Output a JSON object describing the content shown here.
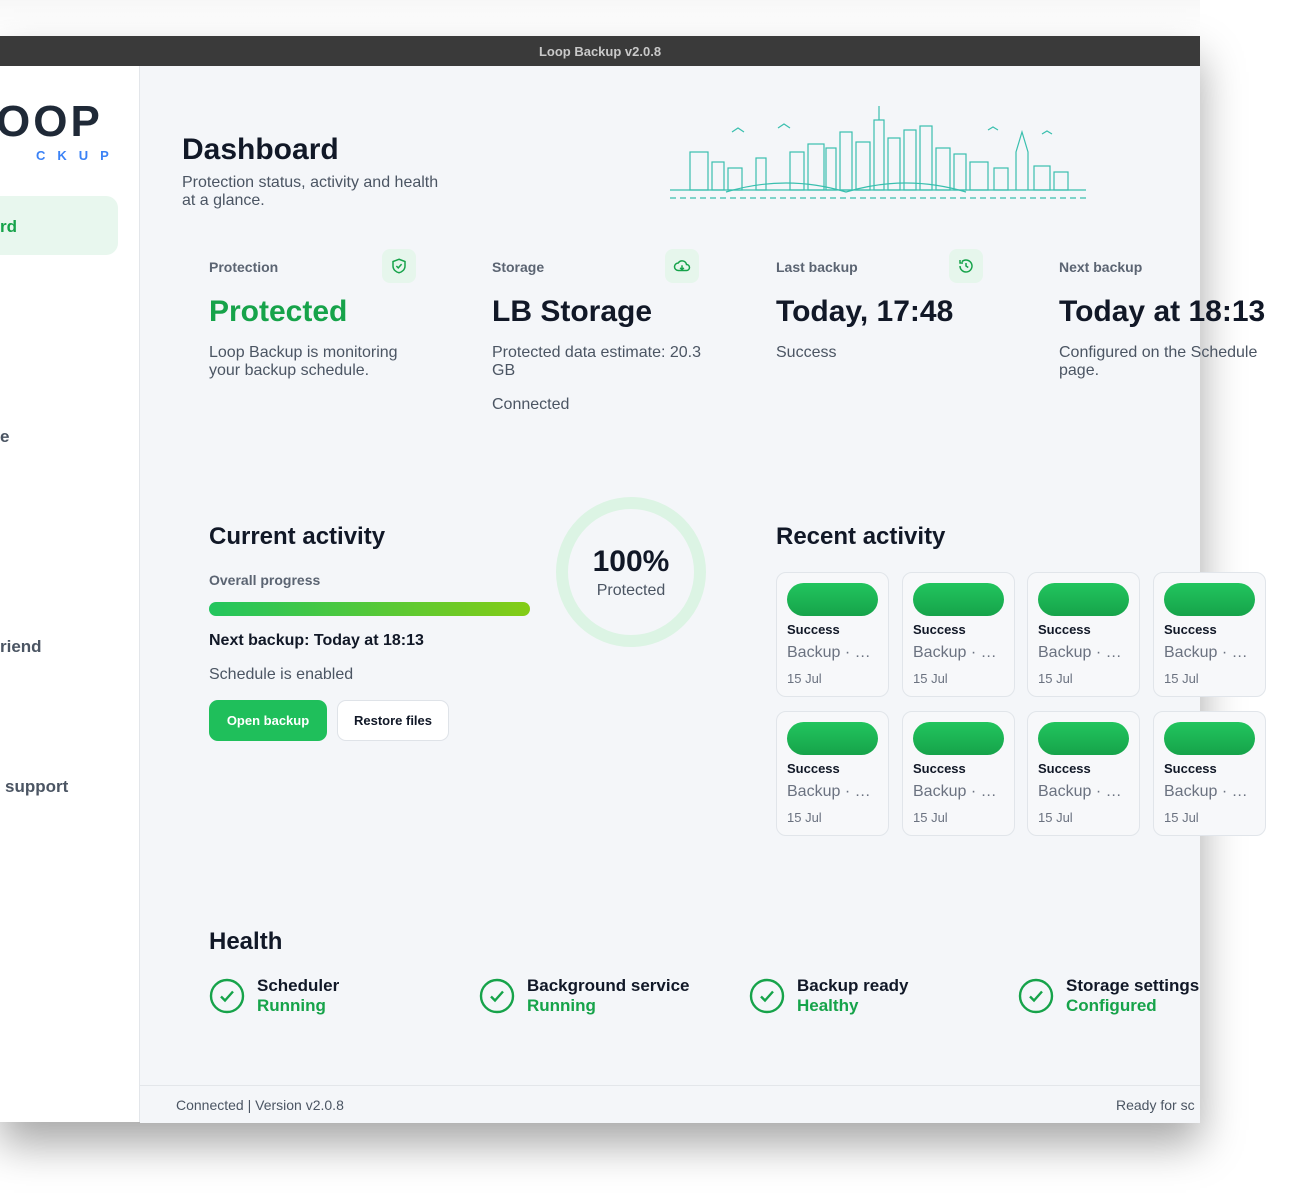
{
  "window": {
    "title": "Loop Backup v2.0.8"
  },
  "sidebar": {
    "logo": {
      "primary": "OOP",
      "secondary": "CKUP"
    },
    "nav": [
      "rd",
      "e",
      "riend",
      "support"
    ]
  },
  "header": {
    "title": "Dashboard",
    "subtitle": "Protection status, activity and health at a glance."
  },
  "cards": [
    {
      "label": "Protection",
      "value": "Protected",
      "text": [
        "Loop Backup is monitoring your backup schedule."
      ]
    },
    {
      "label": "Storage",
      "value": "LB Storage",
      "text": [
        "Protected data estimate: 20.3 GB",
        "Connected"
      ]
    },
    {
      "label": "Last backup",
      "value": "Today, 17:48",
      "text": [
        "Success"
      ]
    },
    {
      "label": "Next backup",
      "value": "Today at 18:13",
      "text": [
        "Configured on the Schedule page."
      ]
    }
  ],
  "current_activity": {
    "title": "Current activity",
    "progress_label": "Overall progress",
    "next_backup": "Next backup: Today at 18:13",
    "schedule": "Schedule is enabled",
    "buttons": [
      "Open backup",
      "Restore files"
    ],
    "ring": {
      "value": "100%",
      "label": "Protected"
    }
  },
  "recent_activity": {
    "title": "Recent activity",
    "tiles": [
      {
        "status": "Success",
        "label": "Backup · …",
        "date": "15 Jul"
      },
      {
        "status": "Success",
        "label": "Backup · …",
        "date": "15 Jul"
      },
      {
        "status": "Success",
        "label": "Backup · …",
        "date": "15 Jul"
      },
      {
        "status": "Success",
        "label": "Backup · …",
        "date": "15 Jul"
      },
      {
        "status": "Success",
        "label": "Backup · …",
        "date": "15 Jul"
      },
      {
        "status": "Success",
        "label": "Backup · …",
        "date": "15 Jul"
      },
      {
        "status": "Success",
        "label": "Backup · …",
        "date": "15 Jul"
      },
      {
        "status": "Success",
        "label": "Backup · …",
        "date": "15 Jul"
      }
    ]
  },
  "health": {
    "title": "Health",
    "items": [
      {
        "name": "Scheduler",
        "status": "Running"
      },
      {
        "name": "Background service",
        "status": "Running"
      },
      {
        "name": "Backup ready",
        "status": "Healthy"
      },
      {
        "name": "Storage settings",
        "status": "Configured"
      }
    ]
  },
  "footer": {
    "left": "Connected | Version v2.0.8",
    "right": "Ready for sc"
  }
}
